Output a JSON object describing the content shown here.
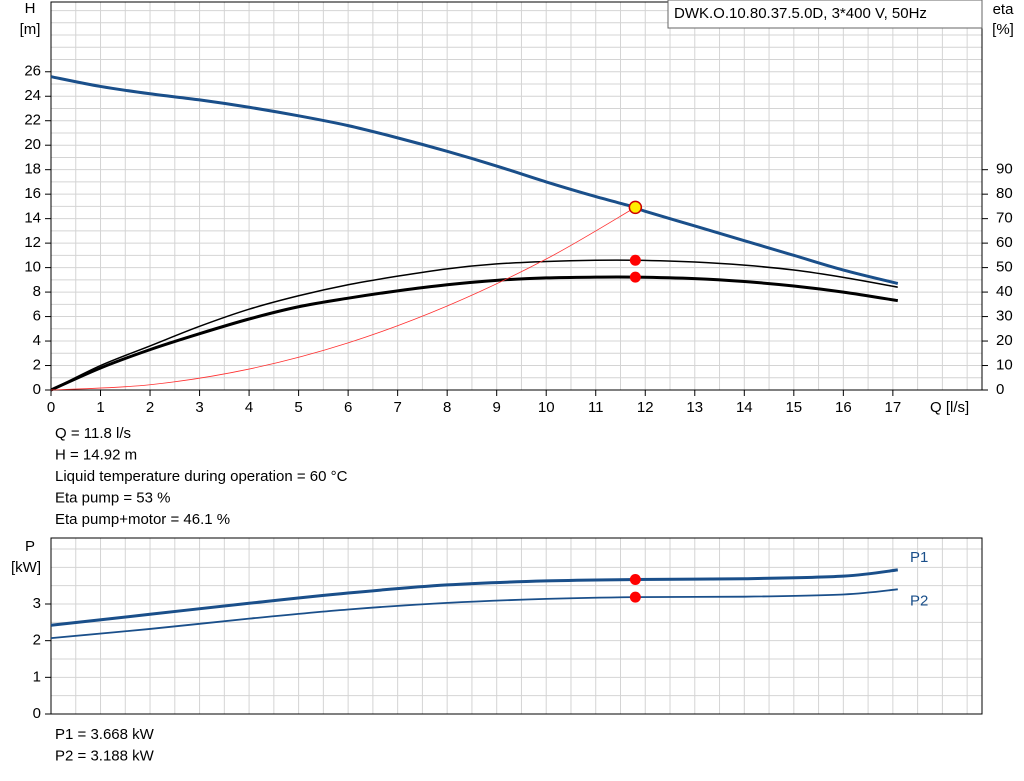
{
  "chart_data": [
    {
      "type": "line",
      "title": "DWK.O.10.80.37.5.0D, 3*400 V, 50Hz",
      "xlabel": "Q [l/s]",
      "ylabel": "H",
      "yunit": "[m]",
      "y2label": "eta",
      "y2unit": "[%]",
      "xlim": [
        0,
        18.8
      ],
      "xticks": [
        0,
        1,
        2,
        3,
        4,
        5,
        6,
        7,
        8,
        9,
        10,
        11,
        12,
        13,
        14,
        15,
        16,
        17
      ],
      "ylim": [
        0,
        31.7
      ],
      "yticks": [
        0,
        2,
        4,
        6,
        8,
        10,
        12,
        14,
        16,
        18,
        20,
        22,
        24,
        26
      ],
      "y2lim": [
        0,
        158.5
      ],
      "y2ticks": [
        0,
        10,
        20,
        30,
        40,
        50,
        60,
        70,
        80,
        90
      ],
      "grid": true,
      "series": [
        {
          "color": "#1a4f8a",
          "width": 3,
          "x": [
            0,
            1,
            2,
            3,
            4,
            5,
            6,
            7,
            8,
            9,
            10,
            11,
            11.8,
            12,
            13,
            14,
            15,
            16,
            17.1
          ],
          "values": [
            25.6,
            24.8,
            24.2,
            23.7,
            23.1,
            22.4,
            21.6,
            20.6,
            19.5,
            18.3,
            17,
            15.8,
            14.92,
            14.6,
            13.4,
            12.2,
            11,
            9.8,
            8.7
          ]
        },
        {
          "color": "#000000",
          "width": 1.5,
          "axis": "y2",
          "x": [
            0,
            1,
            2,
            3,
            4,
            5,
            6,
            7,
            8,
            9,
            10,
            11,
            11.8,
            13,
            14,
            15,
            16,
            17.1
          ],
          "values": [
            0,
            10,
            18,
            26,
            33,
            38.5,
            43,
            46.5,
            49.5,
            51.5,
            52.5,
            53,
            53,
            52.3,
            51,
            49,
            46,
            42
          ]
        },
        {
          "color": "#000000",
          "width": 3,
          "axis": "y2",
          "x": [
            0,
            1,
            2,
            3,
            4,
            5,
            6,
            7,
            8,
            9,
            10,
            11,
            11.8,
            13,
            14,
            15,
            16,
            17.1
          ],
          "values": [
            0,
            9,
            16.5,
            23,
            29,
            34,
            37.5,
            40.5,
            43,
            44.8,
            45.8,
            46.1,
            46.1,
            45.5,
            44.3,
            42.5,
            40,
            36.5
          ]
        },
        {
          "color": "#ff3030",
          "width": 0.8,
          "x": [
            0,
            2,
            4,
            6,
            8,
            10,
            11.8
          ],
          "values": [
            0,
            0.43,
            1.71,
            3.85,
            6.86,
            10.7,
            14.92
          ]
        }
      ],
      "points": [
        {
          "x": 11.8,
          "y": 14.92,
          "color": "#ffee00"
        },
        {
          "x": 11.8,
          "y": 53,
          "axis": "y2",
          "color": "#ff0000"
        },
        {
          "x": 11.8,
          "y": 46.1,
          "axis": "y2",
          "color": "#ff0000"
        }
      ],
      "annotations": [
        "Q = 11.8 l/s",
        "H = 14.92 m",
        "Liquid temperature during operation = 60 °C",
        "Eta pump = 53 %",
        "Eta pump+motor = 46.1 %"
      ]
    },
    {
      "type": "line",
      "ylabel": "P",
      "yunit": "[kW]",
      "xlim": [
        0,
        18.8
      ],
      "ylim": [
        0,
        4.8
      ],
      "yticks": [
        0,
        1,
        2,
        3
      ],
      "grid": true,
      "series": [
        {
          "name": "P1",
          "color": "#1a4f8a",
          "width": 3,
          "x": [
            0,
            2,
            4,
            6,
            8,
            10,
            11.8,
            14,
            16,
            17.1
          ],
          "values": [
            2.42,
            2.72,
            3.02,
            3.3,
            3.52,
            3.63,
            3.668,
            3.69,
            3.76,
            3.93
          ]
        },
        {
          "name": "P2",
          "color": "#1a4f8a",
          "width": 1.8,
          "x": [
            0,
            2,
            4,
            6,
            8,
            10,
            11.8,
            14,
            16,
            17.1
          ],
          "values": [
            2.07,
            2.32,
            2.6,
            2.85,
            3.03,
            3.14,
            3.188,
            3.2,
            3.26,
            3.4
          ]
        }
      ],
      "points": [
        {
          "x": 11.8,
          "y": 3.668,
          "color": "#ff0000"
        },
        {
          "x": 11.8,
          "y": 3.188,
          "color": "#ff0000"
        }
      ],
      "annotations": [
        "P1 = 3.668 kW",
        "P2 = 3.188 kW"
      ]
    }
  ]
}
